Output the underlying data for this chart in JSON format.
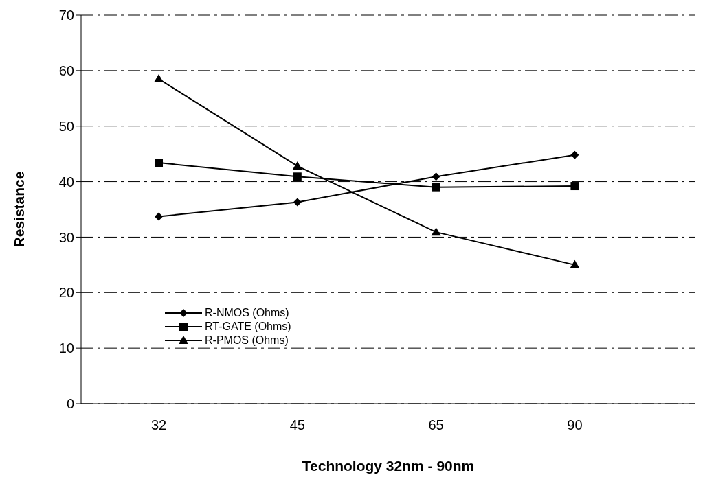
{
  "chart_data": {
    "type": "line",
    "xlabel": "Technology 32nm - 90nm",
    "ylabel": "Resistance",
    "categories": [
      "32",
      "45",
      "65",
      "90"
    ],
    "series": [
      {
        "name": "R-NMOS (Ohms)",
        "color": "#000000",
        "marker": "diamond",
        "values": [
          33.7,
          36.3,
          40.9,
          44.8
        ]
      },
      {
        "name": "RT-GATE  (Ohms)",
        "color": "#000000",
        "marker": "square",
        "values": [
          43.4,
          40.9,
          39.0,
          39.2
        ]
      },
      {
        "name": "R-PMOS (Ohms)",
        "color": "#000000",
        "marker": "triangle",
        "values": [
          58.5,
          42.8,
          30.9,
          25.0
        ]
      }
    ],
    "ylim": [
      0,
      70
    ],
    "yticks": [
      0,
      10,
      20,
      30,
      40,
      50,
      60,
      70
    ],
    "grid": "y",
    "legend": "bottom left",
    "line_style": "solid"
  }
}
